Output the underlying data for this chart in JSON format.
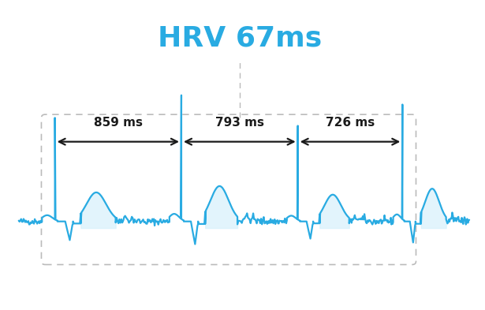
{
  "title": "HRV 67ms",
  "title_color": "#29ABE2",
  "title_fontsize": 26,
  "ecg_color": "#29ABE2",
  "ecg_fill_color": "#d6f0fb",
  "ecg_linewidth": 1.6,
  "arrow_color": "#1a1a1a",
  "bg_color": "#ffffff",
  "intervals": [
    "859 ms",
    "793 ms",
    "726 ms"
  ],
  "dashed_box_color": "#bbbbbb",
  "figsize": [
    6.15,
    3.93
  ],
  "dpi": 100,
  "beat_intervals": [
    0.859,
    0.793,
    0.726
  ],
  "r_peak_offset": 0.28
}
